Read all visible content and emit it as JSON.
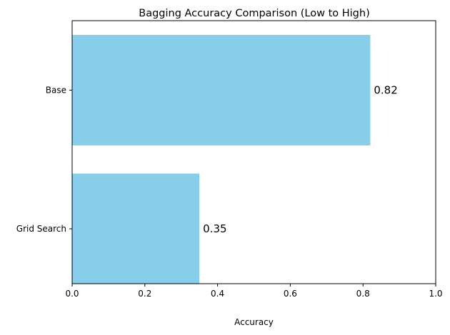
{
  "chart_data": {
    "type": "bar",
    "orientation": "horizontal",
    "title": "Bagging Accuracy Comparison (Low to High)",
    "xlabel": "Accuracy",
    "ylabel": "",
    "categories": [
      "Grid Search",
      "Base"
    ],
    "values": [
      0.35,
      0.82
    ],
    "value_labels": [
      "0.35",
      "0.82"
    ],
    "xlim": [
      0,
      1.0
    ],
    "xticks": [
      0.0,
      0.2,
      0.4,
      0.6,
      0.8,
      1.0
    ],
    "xtick_labels": [
      "0.0",
      "0.2",
      "0.4",
      "0.6",
      "0.8",
      "1.0"
    ],
    "grid": false,
    "bar_color": "#87CEEB"
  }
}
